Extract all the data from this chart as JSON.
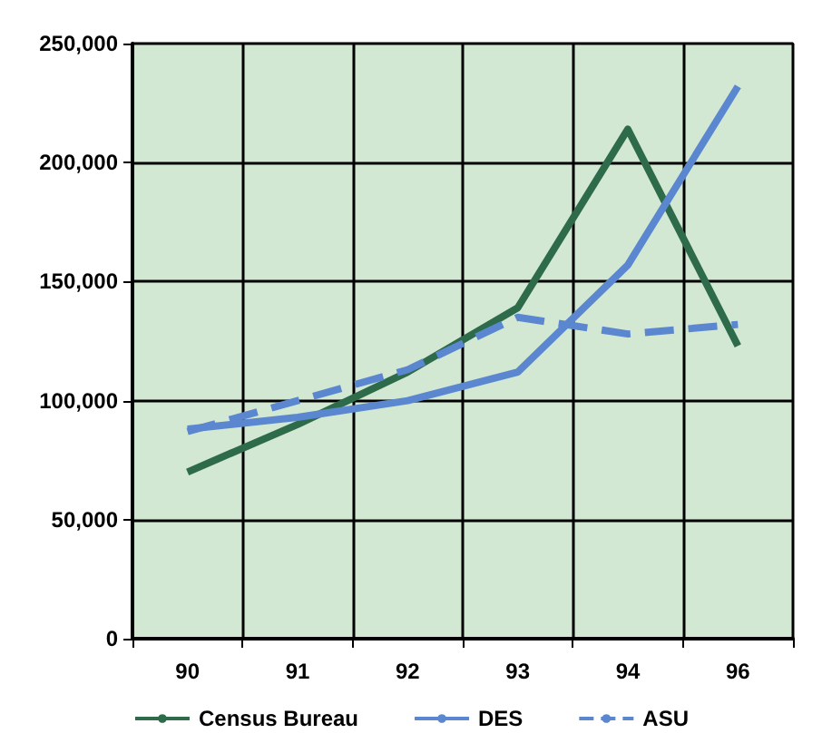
{
  "chart_data": {
    "type": "line",
    "categories": [
      "90",
      "91",
      "92",
      "93",
      "94",
      "96"
    ],
    "series": [
      {
        "name": "Census Bureau",
        "color": "#2e6b4a",
        "line_style": "solid",
        "values": [
          70000,
          90000,
          112000,
          139000,
          214000,
          123000
        ]
      },
      {
        "name": "DES",
        "color": "#5b87d0",
        "line_style": "solid",
        "values": [
          88000,
          93000,
          100000,
          112000,
          157000,
          232000
        ]
      },
      {
        "name": "ASU",
        "color": "#5b87d0",
        "line_style": "dashed",
        "values": [
          87000,
          100000,
          113000,
          135000,
          128000,
          132000
        ]
      }
    ],
    "ylim": [
      0,
      250000
    ],
    "yticks": [
      0,
      {
        "value": 50000,
        "label": "50,000"
      },
      {
        "value": 100000,
        "label": "100,000"
      },
      {
        "value": 150000,
        "label": "150,000"
      },
      {
        "value": 200000,
        "label": "200,000"
      },
      {
        "value": 250000,
        "label": "250,000"
      }
    ],
    "grid": true,
    "legend": "bottom",
    "marker": "none"
  }
}
